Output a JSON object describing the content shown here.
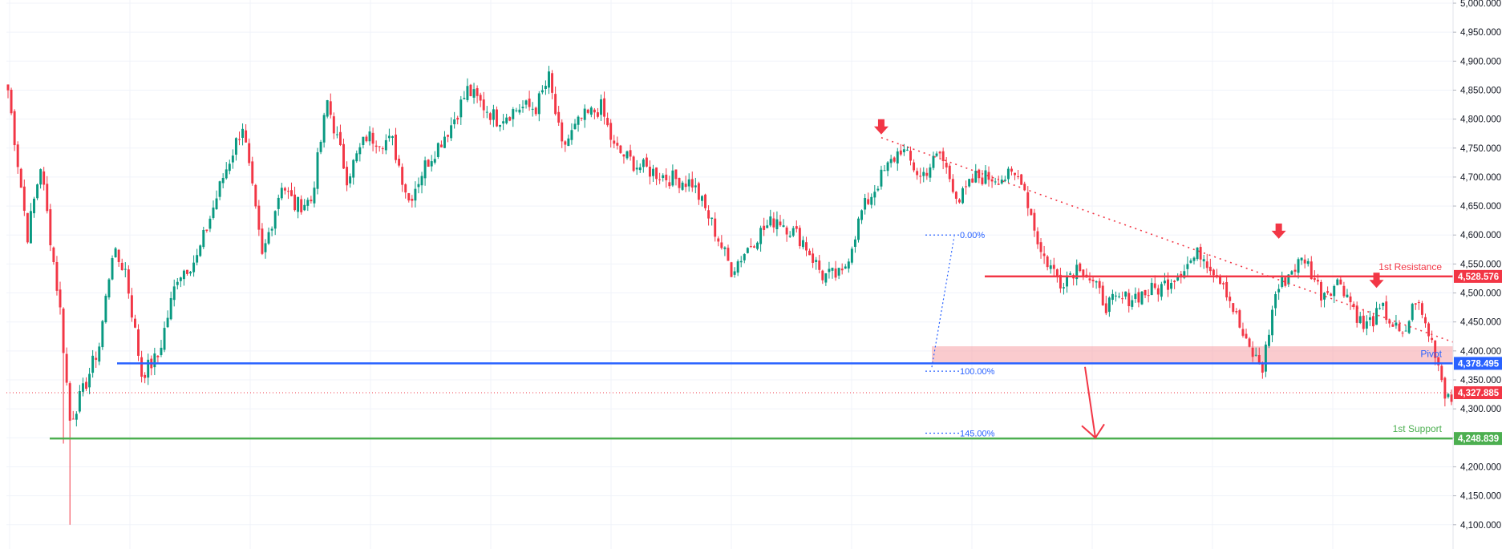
{
  "colors": {
    "up": "#089981",
    "down": "#f23645",
    "grid": "#f0f3fa",
    "axis_text": "#131722",
    "resistance": "#f23645",
    "pivot": "#2962ff",
    "support": "#4caf50",
    "fib": "#2962ff",
    "trendline": "#f23645",
    "zone": "#f7a8ae"
  },
  "chart_data": {
    "type": "candlestick",
    "ylim": [
      4090,
      5000
    ],
    "y_ticks": [
      "5,000.000",
      "4,950.000",
      "4,900.000",
      "4,850.000",
      "4,800.000",
      "4,750.000",
      "4,700.000",
      "4,650.000",
      "4,600.000",
      "4,550.000",
      "4,500.000",
      "4,450.000",
      "4,400.000",
      "4,350.000",
      "4,300.000",
      "4,250.000",
      "4,200.000",
      "4,150.000",
      "4,100.000"
    ],
    "y_tick_values": [
      5000,
      4950,
      4900,
      4850,
      4800,
      4750,
      4700,
      4650,
      4600,
      4550,
      4500,
      4450,
      4400,
      4350,
      4300,
      4250,
      4200,
      4150,
      4100
    ],
    "anchors": [
      [
        0,
        4850
      ],
      [
        6,
        4600
      ],
      [
        10,
        4720
      ],
      [
        16,
        4470
      ],
      [
        19,
        4280
      ],
      [
        23,
        4330
      ],
      [
        28,
        4410
      ],
      [
        32,
        4570
      ],
      [
        36,
        4540
      ],
      [
        41,
        4360
      ],
      [
        46,
        4390
      ],
      [
        52,
        4530
      ],
      [
        58,
        4560
      ],
      [
        66,
        4700
      ],
      [
        72,
        4790
      ],
      [
        78,
        4560
      ],
      [
        84,
        4690
      ],
      [
        88,
        4650
      ],
      [
        93,
        4660
      ],
      [
        98,
        4830
      ],
      [
        104,
        4700
      ],
      [
        110,
        4770
      ],
      [
        118,
        4760
      ],
      [
        123,
        4660
      ],
      [
        128,
        4720
      ],
      [
        136,
        4790
      ],
      [
        141,
        4850
      ],
      [
        150,
        4800
      ],
      [
        157,
        4820
      ],
      [
        162,
        4820
      ],
      [
        166,
        4870
      ],
      [
        170,
        4750
      ],
      [
        176,
        4800
      ],
      [
        182,
        4820
      ],
      [
        186,
        4750
      ],
      [
        193,
        4720
      ],
      [
        202,
        4700
      ],
      [
        210,
        4690
      ],
      [
        216,
        4620
      ],
      [
        222,
        4540
      ],
      [
        230,
        4600
      ],
      [
        236,
        4630
      ],
      [
        244,
        4590
      ],
      [
        250,
        4530
      ],
      [
        256,
        4530
      ],
      [
        262,
        4640
      ],
      [
        268,
        4700
      ],
      [
        274,
        4750
      ],
      [
        280,
        4700
      ],
      [
        286,
        4740
      ],
      [
        292,
        4660
      ],
      [
        297,
        4700
      ],
      [
        303,
        4700
      ],
      [
        311,
        4700
      ],
      [
        317,
        4570
      ],
      [
        323,
        4520
      ],
      [
        329,
        4550
      ],
      [
        337,
        4480
      ],
      [
        343,
        4490
      ],
      [
        349,
        4500
      ],
      [
        354,
        4510
      ],
      [
        360,
        4540
      ],
      [
        366,
        4570
      ],
      [
        373,
        4520
      ],
      [
        380,
        4410
      ],
      [
        385,
        4370
      ],
      [
        389,
        4500
      ],
      [
        394,
        4540
      ],
      [
        398,
        4560
      ],
      [
        403,
        4500
      ],
      [
        409,
        4520
      ],
      [
        416,
        4440
      ],
      [
        422,
        4470
      ],
      [
        428,
        4420
      ],
      [
        432,
        4490
      ],
      [
        438,
        4400
      ],
      [
        441,
        4330
      ],
      [
        443,
        4320
      ]
    ],
    "levels": [
      {
        "name": "1st Resistance",
        "value": 4528.576,
        "label": "4,528.576"
      },
      {
        "name": "Pivot",
        "value": 4378.495,
        "label": "4,378.495"
      },
      {
        "name": "1st Support",
        "value": 4248.839,
        "label": "4,248.839"
      }
    ],
    "last_price": {
      "value": 4327.885,
      "label": "4,327.885"
    },
    "fib_levels": [
      {
        "label": "0.00%",
        "value": 4600
      },
      {
        "label": "100.00%",
        "value": 4365
      },
      {
        "label": "145.00%",
        "value": 4258
      }
    ],
    "zone": [
      4378.495,
      4408
    ],
    "trendline": [
      [
        268,
        4768
      ],
      [
        461,
        4380
      ]
    ],
    "down_markers": [
      [
        268,
        4775
      ],
      [
        390,
        4595
      ],
      [
        420,
        4510
      ]
    ],
    "projection": [
      [
        1353,
        4378
      ],
      [
        1366,
        4250
      ]
    ],
    "grid": true
  }
}
